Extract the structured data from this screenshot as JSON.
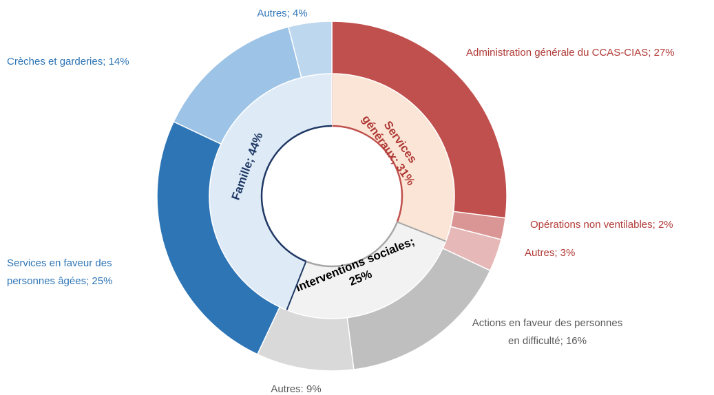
{
  "chart_data": {
    "type": "sunburst",
    "groups": [
      {
        "label": [
          "Services",
          "généraux; 31%"
        ],
        "value": 31,
        "color": "#fbe5d6",
        "edge_color": "#c0504d",
        "text_color": "#b03a36",
        "children": [
          {
            "label": [
              "Administration générale du CCAS-CIAS; 27%"
            ],
            "value": 27,
            "color": "#c0504d",
            "text_color": "#b03a36"
          },
          {
            "label": [
              "Opérations non ventilables; 2%"
            ],
            "value": 2,
            "color": "#d99694",
            "text_color": "#b03a36"
          },
          {
            "label": [
              "Autres; 3%"
            ],
            "value": 3,
            "color": "#e6b9b8",
            "text_color": "#b03a36"
          }
        ]
      },
      {
        "label": [
          "Interventions sociales;",
          "25%"
        ],
        "value": 25,
        "color": "#f2f2f2",
        "edge_color": "#a6a6a6",
        "text_color": "#000000",
        "children": [
          {
            "label": [
              "Actions en faveur des personnes",
              "en difficulté; 16%"
            ],
            "value": 16,
            "color": "#bfbfbf",
            "text_color": "#595959"
          },
          {
            "label": [
              "Autres: 9%"
            ],
            "value": 9,
            "color": "#d9d9d9",
            "text_color": "#595959"
          }
        ]
      },
      {
        "label": [
          "Famille; 44%"
        ],
        "value": 44,
        "color": "#deebf7",
        "edge_color": "#1f3864",
        "text_color": "#1f3864",
        "children": [
          {
            "label": [
              "Services en faveur des",
              "personnes âgées; 25%"
            ],
            "value": 25,
            "color": "#2e75b6",
            "text_color": "#2e75b6"
          },
          {
            "label": [
              "Crèches et garderies; 14%"
            ],
            "value": 14,
            "color": "#9dc3e6",
            "text_color": "#2e75b6"
          },
          {
            "label": [
              "Autres; 4%"
            ],
            "value": 4,
            "color": "#bdd7ee",
            "text_color": "#2e75b6"
          }
        ]
      }
    ]
  }
}
